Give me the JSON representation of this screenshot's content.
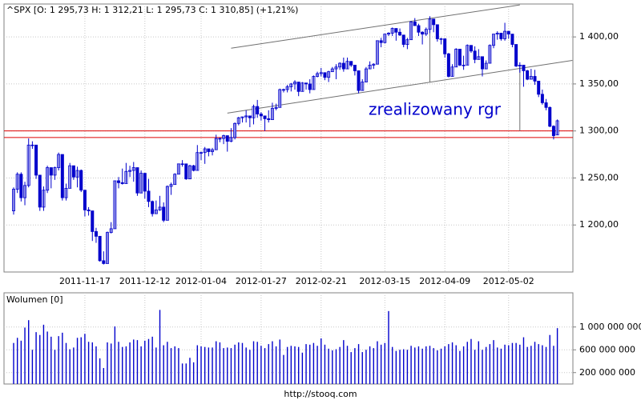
{
  "chart_data": [
    {
      "type": "candlestick",
      "title": "^SPX [O: 1 295,73  H: 1 312,21  L: 1 295,73  C: 1 310,85] (+1,21%)",
      "annotation": "zrealizowany rgr",
      "source": "http://stooq.com",
      "color": "#0000cc",
      "grid": true,
      "ylim": [
        1150,
        1435
      ],
      "yticks": [
        {
          "value": 1200,
          "label": "1 200,00"
        },
        {
          "value": 1250,
          "label": "1 250,00"
        },
        {
          "value": 1300,
          "label": "1 300,00"
        },
        {
          "value": 1350,
          "label": "1 350,00"
        },
        {
          "value": 1400,
          "label": "1 400,00"
        }
      ],
      "categories": [
        null,
        null,
        null,
        null,
        null,
        null,
        null,
        null,
        null,
        null,
        null,
        null,
        null,
        null,
        null,
        null,
        null,
        null,
        null,
        "2011-11-17",
        null,
        null,
        null,
        null,
        null,
        null,
        null,
        null,
        null,
        null,
        null,
        null,
        null,
        null,
        null,
        "2011-12-12",
        null,
        null,
        null,
        null,
        null,
        null,
        null,
        null,
        null,
        null,
        null,
        null,
        null,
        null,
        "2012-01-04",
        null,
        null,
        null,
        null,
        null,
        null,
        null,
        null,
        null,
        null,
        null,
        null,
        null,
        null,
        null,
        "2012-01-27",
        null,
        null,
        null,
        null,
        null,
        null,
        null,
        null,
        null,
        null,
        null,
        null,
        null,
        null,
        null,
        "2012-02-21",
        null,
        null,
        null,
        null,
        null,
        null,
        null,
        null,
        null,
        null,
        null,
        null,
        null,
        null,
        null,
        null,
        "2012-03-15",
        null,
        null,
        null,
        null,
        null,
        null,
        null,
        null,
        null,
        null,
        null,
        null,
        null,
        null,
        null,
        "2012-04-09",
        null,
        null,
        null,
        null,
        null,
        null,
        null,
        null,
        null,
        null,
        null,
        null,
        null,
        null,
        null,
        null,
        "2012-05-02",
        null,
        null,
        null,
        null,
        null,
        null,
        null,
        null,
        null,
        null,
        null,
        null,
        null
      ],
      "open": [
        1215,
        1238,
        1254,
        1229,
        1242,
        1285,
        1285,
        1253,
        1219,
        1237,
        1261,
        1253,
        1261,
        1275,
        1229,
        1239,
        1263,
        1251,
        1258,
        1237,
        1216,
        1215,
        1193,
        1188,
        1162,
        1159,
        1192,
        1196,
        1247,
        1245,
        1244,
        1257,
        1258,
        1261,
        1234,
        1255,
        1236,
        1225,
        1212,
        1216,
        1219,
        1205,
        1241,
        1243,
        1254,
        1265,
        1265,
        1249,
        1263,
        1258,
        1277,
        1277,
        1281,
        1278,
        1280,
        1292,
        1292,
        1295,
        1289,
        1293,
        1308,
        1314,
        1315,
        1316,
        1314,
        1326,
        1318,
        1316,
        1313,
        1312,
        1324,
        1325,
        1344,
        1344,
        1347,
        1350,
        1352,
        1342,
        1351,
        1350,
        1344,
        1358,
        1361,
        1362,
        1357,
        1363,
        1366,
        1368,
        1372,
        1366,
        1374,
        1370,
        1364,
        1343,
        1352,
        1366,
        1370,
        1371,
        1396,
        1394,
        1403,
        1404,
        1409,
        1405,
        1402,
        1392,
        1397,
        1416,
        1412,
        1405,
        1403,
        1408,
        1419,
        1413,
        1398,
        1398,
        1382,
        1358,
        1368,
        1387,
        1370,
        1370,
        1391,
        1385,
        1376,
        1379,
        1366,
        1372,
        1391,
        1403,
        1404,
        1398,
        1406,
        1403,
        1392,
        1369,
        1370,
        1364,
        1355,
        1358,
        1353,
        1339,
        1330,
        1325,
        1305,
        1295.73
      ],
      "high": [
        1240,
        1256,
        1256,
        1246,
        1292,
        1289,
        1285,
        1253,
        1241,
        1263,
        1261,
        1262,
        1277,
        1275,
        1244,
        1266,
        1263,
        1262,
        1259,
        1237,
        1219,
        1215,
        1197,
        1188,
        1172,
        1193,
        1203,
        1247,
        1251,
        1260,
        1266,
        1263,
        1267,
        1261,
        1258,
        1255,
        1249,
        1226,
        1226,
        1231,
        1224,
        1242,
        1245,
        1255,
        1265,
        1269,
        1265,
        1264,
        1264,
        1285,
        1278,
        1283,
        1281,
        1282,
        1296,
        1293,
        1296,
        1295,
        1303,
        1309,
        1315,
        1315,
        1322,
        1316,
        1328,
        1333,
        1320,
        1316,
        1322,
        1330,
        1329,
        1345,
        1345,
        1349,
        1351,
        1354,
        1352,
        1352,
        1351,
        1355,
        1359,
        1363,
        1367,
        1362,
        1364,
        1368,
        1371,
        1373,
        1378,
        1378,
        1374,
        1370,
        1364,
        1355,
        1368,
        1374,
        1372,
        1396,
        1399,
        1403,
        1405,
        1410,
        1409,
        1409,
        1402,
        1399,
        1417,
        1420,
        1414,
        1406,
        1410,
        1422,
        1419,
        1413,
        1399,
        1398,
        1383,
        1371,
        1388,
        1387,
        1380,
        1392,
        1391,
        1390,
        1387,
        1379,
        1375,
        1392,
        1403,
        1406,
        1404,
        1415,
        1406,
        1403,
        1392,
        1373,
        1370,
        1365,
        1366,
        1365,
        1353,
        1344,
        1334,
        1326,
        1306,
        1312.21
      ],
      "low": [
        1211,
        1234,
        1225,
        1221,
        1240,
        1281,
        1249,
        1215,
        1215,
        1234,
        1239,
        1248,
        1258,
        1226,
        1226,
        1239,
        1248,
        1240,
        1235,
        1209,
        1210,
        1183,
        1181,
        1161,
        1158,
        1159,
        1191,
        1196,
        1239,
        1243,
        1244,
        1251,
        1246,
        1231,
        1234,
        1228,
        1219,
        1209,
        1212,
        1215,
        1203,
        1205,
        1232,
        1243,
        1254,
        1262,
        1248,
        1249,
        1257,
        1258,
        1269,
        1265,
        1273,
        1274,
        1280,
        1288,
        1286,
        1278,
        1288,
        1291,
        1306,
        1309,
        1309,
        1304,
        1307,
        1314,
        1311,
        1300,
        1309,
        1312,
        1322,
        1325,
        1341,
        1341,
        1342,
        1344,
        1337,
        1342,
        1344,
        1340,
        1344,
        1357,
        1358,
        1354,
        1352,
        1363,
        1355,
        1365,
        1363,
        1366,
        1368,
        1359,
        1340,
        1343,
        1352,
        1366,
        1366,
        1371,
        1389,
        1393,
        1401,
        1401,
        1396,
        1401,
        1389,
        1387,
        1397,
        1412,
        1401,
        1392,
        1401,
        1404,
        1405,
        1395,
        1392,
        1378,
        1357,
        1358,
        1368,
        1369,
        1365,
        1370,
        1383,
        1372,
        1376,
        1358,
        1366,
        1372,
        1388,
        1397,
        1396,
        1396,
        1398,
        1389,
        1368,
        1362,
        1347,
        1354,
        1355,
        1349,
        1336,
        1328,
        1322,
        1304,
        1291,
        1295.73
      ],
      "close": [
        1238,
        1254,
        1229,
        1242,
        1285,
        1285,
        1253,
        1219,
        1237,
        1261,
        1253,
        1261,
        1275,
        1229,
        1239,
        1263,
        1251,
        1258,
        1237,
        1216,
        1215,
        1193,
        1188,
        1162,
        1159,
        1192,
        1196,
        1247,
        1245,
        1244,
        1257,
        1258,
        1261,
        1234,
        1255,
        1236,
        1225,
        1212,
        1216,
        1219,
        1205,
        1241,
        1243,
        1254,
        1265,
        1265,
        1249,
        1263,
        1258,
        1277,
        1277,
        1281,
        1278,
        1280,
        1292,
        1292,
        1295,
        1289,
        1293,
        1308,
        1314,
        1315,
        1316,
        1314,
        1326,
        1318,
        1316,
        1313,
        1312,
        1324,
        1325,
        1344,
        1344,
        1347,
        1350,
        1352,
        1342,
        1351,
        1350,
        1344,
        1358,
        1361,
        1362,
        1357,
        1363,
        1366,
        1368,
        1372,
        1366,
        1374,
        1370,
        1364,
        1343,
        1352,
        1366,
        1370,
        1371,
        1396,
        1394,
        1403,
        1404,
        1409,
        1405,
        1402,
        1392,
        1397,
        1416,
        1412,
        1405,
        1403,
        1408,
        1419,
        1413,
        1398,
        1398,
        1382,
        1358,
        1368,
        1387,
        1370,
        1370,
        1391,
        1385,
        1376,
        1379,
        1366,
        1372,
        1391,
        1403,
        1404,
        1398,
        1406,
        1403,
        1392,
        1369,
        1370,
        1364,
        1355,
        1358,
        1353,
        1339,
        1330,
        1325,
        1305,
        1295,
        1310.85
      ],
      "levels": [
        1300,
        1293
      ],
      "level_color": "#dd0000",
      "lines": [
        {
          "x": [
            58,
            135
          ],
          "y": [
            1388,
            1434
          ]
        },
        {
          "x": [
            57,
            149
          ],
          "y": [
            1319,
            1375
          ]
        },
        {
          "x": [
            111,
            111
          ],
          "y": [
            1419,
            1352
          ]
        },
        {
          "x": [
            135,
            135
          ],
          "y": [
            1368,
            1300
          ]
        }
      ],
      "line_color": "#707070"
    },
    {
      "type": "bar",
      "title": "Wolumen [0]",
      "color": "#0000cc",
      "grid": true,
      "ylim": [
        0,
        1600000000.0
      ],
      "yticks": [
        {
          "value": 1000000000,
          "label": "1 000 000 000"
        },
        {
          "value": 600000000,
          "label": "600 000 000"
        },
        {
          "value": 200000000,
          "label": "200 000 000"
        }
      ],
      "values": [
        720000000.0,
        810000000.0,
        760000000.0,
        990000000.0,
        1120000000.0,
        600000000.0,
        910000000.0,
        860000000.0,
        1040000000.0,
        920000000.0,
        830000000.0,
        600000000.0,
        840000000.0,
        900000000.0,
        720000000.0,
        610000000.0,
        640000000.0,
        810000000.0,
        820000000.0,
        880000000.0,
        740000000.0,
        730000000.0,
        660000000.0,
        450000000.0,
        280000000.0,
        730000000.0,
        710000000.0,
        1010000000.0,
        740000000.0,
        650000000.0,
        660000000.0,
        730000000.0,
        780000000.0,
        770000000.0,
        660000000.0,
        760000000.0,
        790000000.0,
        830000000.0,
        640000000.0,
        1300000000.0,
        680000000.0,
        740000000.0,
        630000000.0,
        660000000.0,
        630000000.0,
        360000000.0,
        360000000.0,
        460000000.0,
        380000000.0,
        680000000.0,
        660000000.0,
        650000000.0,
        640000000.0,
        640000000.0,
        750000000.0,
        730000000.0,
        630000000.0,
        640000000.0,
        630000000.0,
        690000000.0,
        730000000.0,
        720000000.0,
        640000000.0,
        600000000.0,
        750000000.0,
        740000000.0,
        670000000.0,
        630000000.0,
        700000000.0,
        750000000.0,
        660000000.0,
        780000000.0,
        510000000.0,
        650000000.0,
        670000000.0,
        660000000.0,
        650000000.0,
        550000000.0,
        700000000.0,
        690000000.0,
        720000000.0,
        670000000.0,
        800000000.0,
        690000000.0,
        620000000.0,
        590000000.0,
        610000000.0,
        650000000.0,
        770000000.0,
        670000000.0,
        560000000.0,
        630000000.0,
        700000000.0,
        560000000.0,
        600000000.0,
        660000000.0,
        630000000.0,
        750000000.0,
        690000000.0,
        720000000.0,
        1280000000.0,
        650000000.0,
        580000000.0,
        600000000.0,
        610000000.0,
        600000000.0,
        670000000.0,
        640000000.0,
        660000000.0,
        620000000.0,
        660000000.0,
        670000000.0,
        630000000.0,
        590000000.0,
        620000000.0,
        660000000.0,
        700000000.0,
        730000000.0,
        680000000.0,
        580000000.0,
        660000000.0,
        740000000.0,
        790000000.0,
        600000000.0,
        750000000.0,
        600000000.0,
        650000000.0,
        700000000.0,
        770000000.0,
        640000000.0,
        620000000.0,
        690000000.0,
        680000000.0,
        720000000.0,
        720000000.0,
        690000000.0,
        820000000.0,
        650000000.0,
        670000000.0,
        740000000.0,
        700000000.0,
        680000000.0,
        650000000.0,
        860000000.0,
        670000000.0,
        980000000.0
      ]
    }
  ]
}
